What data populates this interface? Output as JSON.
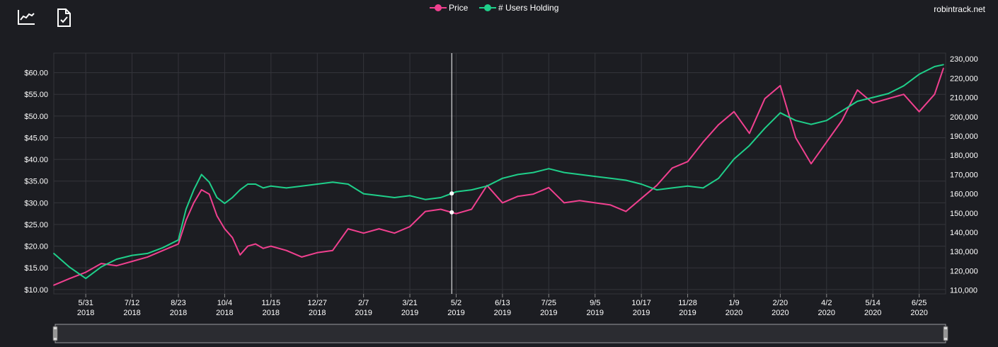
{
  "site": "robintrack.net",
  "toolbar": {
    "chart_icon": "line-chart-icon",
    "doc_icon": "document-check-icon"
  },
  "colors": {
    "background": "#1c1d22",
    "price": "#f0408f",
    "users": "#1fcf8a",
    "grid": "#34353b",
    "cursor": "#ffffff",
    "brush_fill": "#2b2c31",
    "brush_stroke": "#9a9aa0"
  },
  "chart_data": {
    "type": "line",
    "x": [
      "2018-05-02",
      "2018-05-16",
      "2018-05-31",
      "2018-06-14",
      "2018-06-28",
      "2018-07-12",
      "2018-07-26",
      "2018-08-09",
      "2018-08-23",
      "2018-08-30",
      "2018-09-06",
      "2018-09-13",
      "2018-09-20",
      "2018-09-27",
      "2018-10-04",
      "2018-10-11",
      "2018-10-18",
      "2018-10-25",
      "2018-11-01",
      "2018-11-08",
      "2018-11-15",
      "2018-11-29",
      "2018-12-13",
      "2018-12-27",
      "2019-01-10",
      "2019-01-24",
      "2019-02-07",
      "2019-02-21",
      "2019-03-07",
      "2019-03-21",
      "2019-04-04",
      "2019-04-18",
      "2019-05-02",
      "2019-05-16",
      "2019-05-30",
      "2019-06-13",
      "2019-06-27",
      "2019-07-11",
      "2019-07-25",
      "2019-08-08",
      "2019-08-22",
      "2019-09-05",
      "2019-09-19",
      "2019-10-03",
      "2019-10-17",
      "2019-10-31",
      "2019-11-14",
      "2019-11-28",
      "2019-12-12",
      "2019-12-26",
      "2020-01-09",
      "2020-01-23",
      "2020-02-06",
      "2020-02-20",
      "2020-03-05",
      "2020-03-19",
      "2020-04-02",
      "2020-04-16",
      "2020-04-30",
      "2020-05-14",
      "2020-05-28",
      "2020-06-11",
      "2020-06-25",
      "2020-07-09",
      "2020-07-17"
    ],
    "series": [
      {
        "name": "Price",
        "axis": "left",
        "values": [
          11.0,
          12.5,
          14.0,
          16.0,
          15.5,
          16.5,
          17.5,
          19.0,
          20.5,
          26.0,
          30.0,
          33.0,
          32.0,
          27.0,
          24.0,
          22.0,
          18.0,
          20.0,
          20.5,
          19.5,
          20.0,
          19.0,
          17.5,
          18.5,
          19.0,
          24.0,
          23.0,
          24.0,
          23.0,
          24.5,
          28.0,
          28.5,
          27.5,
          28.5,
          34.0,
          30.0,
          31.5,
          32.0,
          33.5,
          30.0,
          30.5,
          30.0,
          29.5,
          28.0,
          31.0,
          34.0,
          38.0,
          39.5,
          44.0,
          48.0,
          51.0,
          46.0,
          54.0,
          57.0,
          45.0,
          39.0,
          44.0,
          49.0,
          56.0,
          53.0,
          54.0,
          55.0,
          51.0,
          55.0,
          61.0
        ]
      },
      {
        "name": "# Users Holding",
        "axis": "right",
        "values": [
          129000,
          122000,
          116000,
          122000,
          126000,
          128000,
          129000,
          132000,
          136000,
          152000,
          162000,
          170000,
          166000,
          158000,
          155000,
          158000,
          162000,
          165000,
          165000,
          163000,
          164000,
          163000,
          164000,
          165000,
          166000,
          165000,
          160000,
          159000,
          158000,
          159000,
          157000,
          158000,
          161000,
          162000,
          164000,
          168000,
          170000,
          171000,
          173000,
          171000,
          170000,
          169000,
          168000,
          167000,
          165000,
          162000,
          163000,
          164000,
          163000,
          168000,
          178000,
          185000,
          194000,
          202000,
          198000,
          196000,
          198000,
          203000,
          208000,
          210000,
          212000,
          216000,
          222000,
          226000,
          227000
        ]
      }
    ],
    "x_ticks": [
      {
        "date": "2018-05-31",
        "label1": "5/31",
        "label2": "2018"
      },
      {
        "date": "2018-07-12",
        "label1": "7/12",
        "label2": "2018"
      },
      {
        "date": "2018-08-23",
        "label1": "8/23",
        "label2": "2018"
      },
      {
        "date": "2018-10-04",
        "label1": "10/4",
        "label2": "2018"
      },
      {
        "date": "2018-11-15",
        "label1": "11/15",
        "label2": "2018"
      },
      {
        "date": "2018-12-27",
        "label1": "12/27",
        "label2": "2018"
      },
      {
        "date": "2019-02-07",
        "label1": "2/7",
        "label2": "2019"
      },
      {
        "date": "2019-03-21",
        "label1": "3/21",
        "label2": "2019"
      },
      {
        "date": "2019-05-02",
        "label1": "5/2",
        "label2": "2019"
      },
      {
        "date": "2019-06-13",
        "label1": "6/13",
        "label2": "2019"
      },
      {
        "date": "2019-07-25",
        "label1": "7/25",
        "label2": "2019"
      },
      {
        "date": "2019-09-05",
        "label1": "9/5",
        "label2": "2019"
      },
      {
        "date": "2019-10-17",
        "label1": "10/17",
        "label2": "2019"
      },
      {
        "date": "2019-11-28",
        "label1": "11/28",
        "label2": "2019"
      },
      {
        "date": "2020-01-09",
        "label1": "1/9",
        "label2": "2020"
      },
      {
        "date": "2020-02-20",
        "label1": "2/20",
        "label2": "2020"
      },
      {
        "date": "2020-04-02",
        "label1": "4/2",
        "label2": "2020"
      },
      {
        "date": "2020-05-14",
        "label1": "5/14",
        "label2": "2020"
      },
      {
        "date": "2020-06-25",
        "label1": "6/25",
        "label2": "2020"
      }
    ],
    "x_range": [
      "2018-05-02",
      "2020-07-19"
    ],
    "y_left": {
      "ticks": [
        10,
        15,
        20,
        25,
        30,
        35,
        40,
        45,
        50,
        55,
        60
      ],
      "labels": [
        "$10.00",
        "$15.00",
        "$20.00",
        "$25.00",
        "$30.00",
        "$35.00",
        "$40.00",
        "$45.00",
        "$50.00",
        "$55.00",
        "$60.00"
      ],
      "range": [
        9.0,
        64.5
      ]
    },
    "y_right": {
      "ticks": [
        110000,
        120000,
        130000,
        140000,
        150000,
        160000,
        170000,
        180000,
        190000,
        200000,
        210000,
        220000,
        230000
      ],
      "labels": [
        "110,000",
        "120,000",
        "130,000",
        "140,000",
        "150,000",
        "160,000",
        "170,000",
        "180,000",
        "190,000",
        "200,000",
        "210,000",
        "220,000",
        "230,000"
      ],
      "range": [
        108000,
        233000
      ]
    },
    "cursor_x": "2019-04-28",
    "grid": true,
    "legend_position": "top-center"
  }
}
